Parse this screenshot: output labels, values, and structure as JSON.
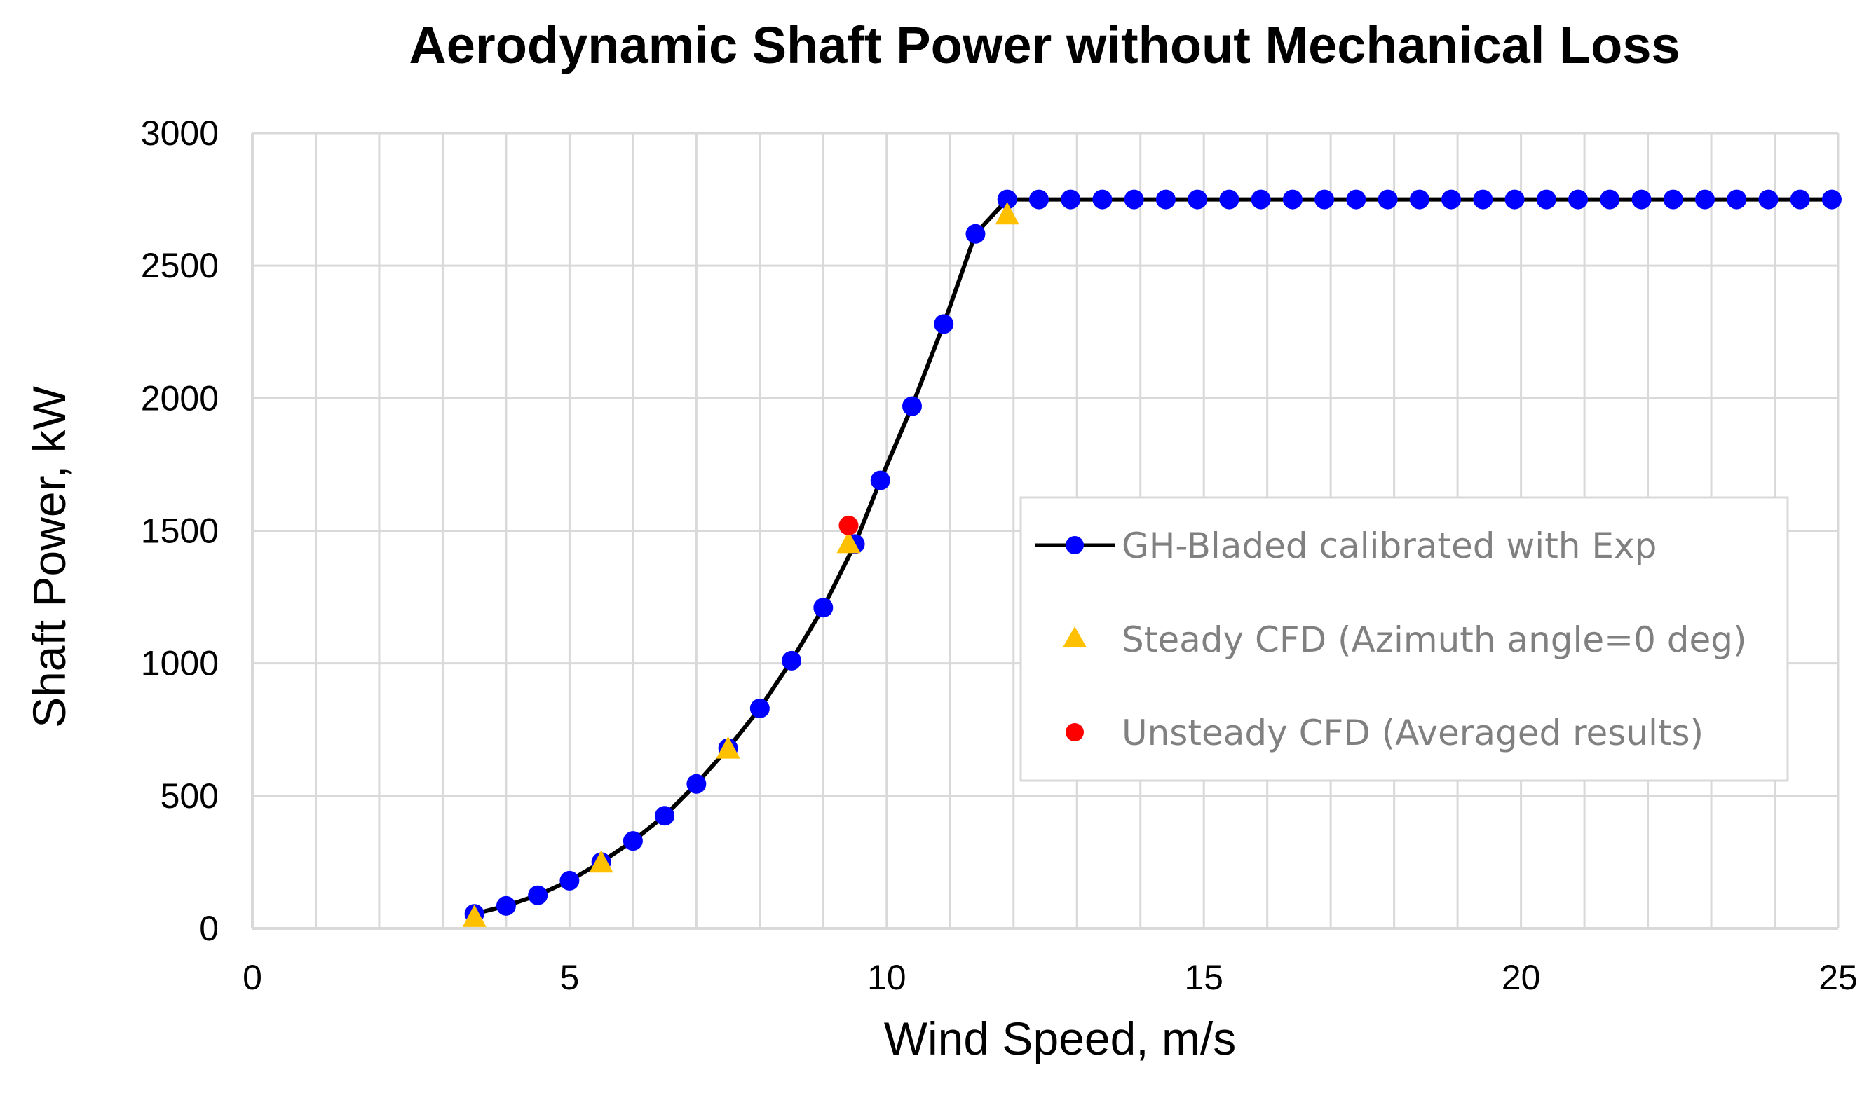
{
  "chart_data": {
    "type": "scatter",
    "title": "Aerodynamic Shaft Power without Mechanical Loss",
    "xlabel": "Wind Speed, m/s",
    "ylabel": "Shaft Power, kW",
    "xlim": [
      0,
      25
    ],
    "ylim": [
      0,
      3000
    ],
    "x_ticks": [
      0,
      5,
      10,
      15,
      20,
      25
    ],
    "y_ticks": [
      0,
      500,
      1000,
      1500,
      2000,
      2500,
      3000
    ],
    "x_minor_step": 1,
    "grid": true,
    "legend_position": "center-right",
    "colors": {
      "line": "#000000",
      "gh_marker": "#0000ff",
      "steady_marker": "#ffc000",
      "unsteady_marker": "#ff0000",
      "grid": "#d9d9d9"
    },
    "series": [
      {
        "name": "GH-Bladed calibrated with Exp",
        "style": "line-circle",
        "x": [
          3.5,
          4,
          4.5,
          5,
          5.5,
          6,
          6.5,
          7,
          7.5,
          8,
          8.5,
          9,
          9.5,
          9.9,
          10.4,
          10.9,
          11.4,
          11.9,
          12.4,
          12.9,
          13.4,
          13.9,
          14.4,
          14.9,
          15.4,
          15.9,
          16.4,
          16.9,
          17.4,
          17.9,
          18.4,
          18.9,
          19.4,
          19.9,
          20.4,
          20.9,
          21.4,
          21.9,
          22.4,
          22.9,
          23.4,
          23.9,
          24.4,
          24.9
        ],
        "values": [
          55,
          85,
          125,
          180,
          250,
          330,
          425,
          545,
          680,
          830,
          1010,
          1210,
          1450,
          1690,
          1970,
          2280,
          2620,
          2750,
          2750,
          2750,
          2750,
          2750,
          2750,
          2750,
          2750,
          2750,
          2750,
          2750,
          2750,
          2750,
          2750,
          2750,
          2750,
          2750,
          2750,
          2750,
          2750,
          2750,
          2750,
          2750,
          2750,
          2750,
          2750,
          2750
        ]
      },
      {
        "name": "Steady CFD (Azimuth angle=0 deg)",
        "style": "triangle",
        "x": [
          3.5,
          5.5,
          7.5,
          9.4,
          11.9
        ],
        "values": [
          40,
          245,
          675,
          1450,
          2690
        ]
      },
      {
        "name": "Unsteady CFD (Averaged results)",
        "style": "circle",
        "x": [
          9.4
        ],
        "values": [
          1520
        ]
      }
    ]
  }
}
